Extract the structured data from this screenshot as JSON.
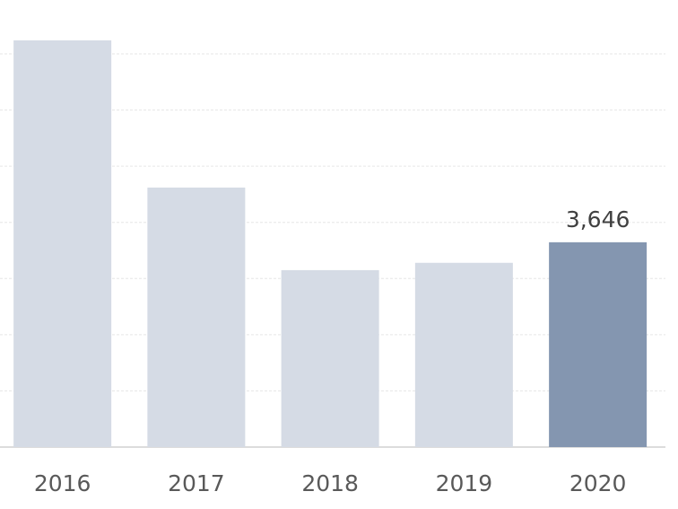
{
  "chart_data": {
    "type": "bar",
    "categories": [
      "2016",
      "2017",
      "2018",
      "2019",
      "2020"
    ],
    "values": [
      7240,
      4620,
      3150,
      3280,
      3646
    ],
    "value_labels": [
      null,
      null,
      null,
      null,
      "3,646"
    ],
    "colors": [
      "#d5dbe5",
      "#d5dbe5",
      "#d5dbe5",
      "#d5dbe5",
      "#8496b0"
    ],
    "ylim": [
      0,
      7000
    ],
    "yticks": [
      0,
      1000,
      2000,
      3000,
      4000,
      5000,
      6000,
      7000
    ],
    "grid": true
  }
}
